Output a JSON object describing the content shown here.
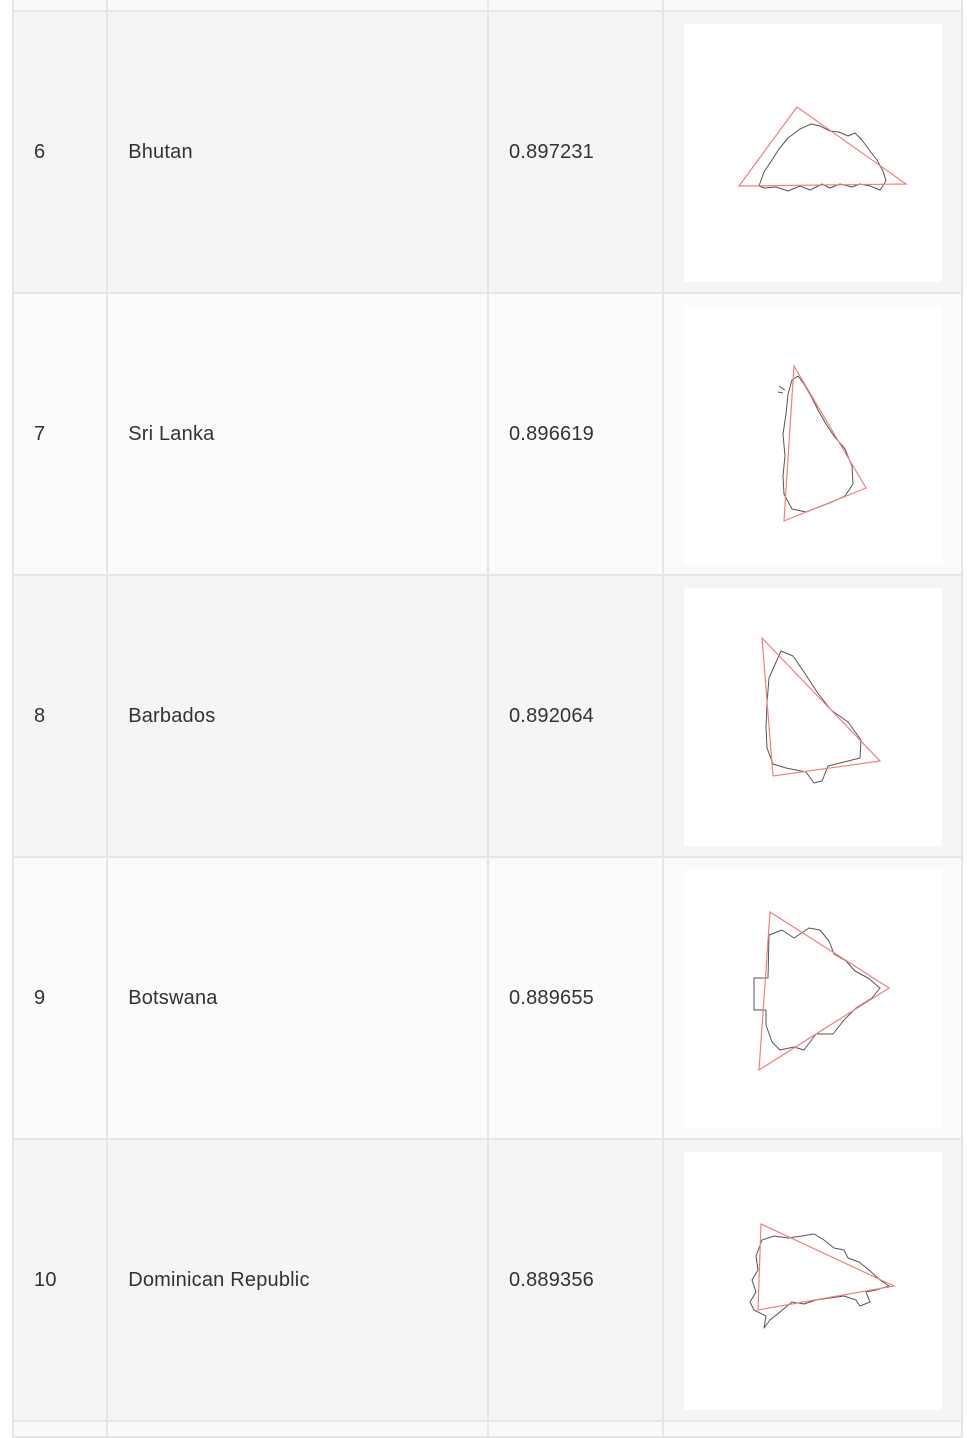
{
  "table": {
    "rows": [
      {
        "rank": "6",
        "country": "Bhutan",
        "score": "0.897231",
        "shape_icon": "bhutan-outline-with-triangle"
      },
      {
        "rank": "7",
        "country": "Sri Lanka",
        "score": "0.896619",
        "shape_icon": "sri-lanka-outline-with-triangle"
      },
      {
        "rank": "8",
        "country": "Barbados",
        "score": "0.892064",
        "shape_icon": "barbados-outline-with-triangle"
      },
      {
        "rank": "9",
        "country": "Botswana",
        "score": "0.889655",
        "shape_icon": "botswana-outline-with-triangle"
      },
      {
        "rank": "10",
        "country": "Dominican Republic",
        "score": "0.889356",
        "shape_icon": "dominican-republic-outline-with-triangle"
      }
    ]
  },
  "colors": {
    "triangle": "#f08080",
    "outline": "#555555",
    "row_alt_a": "#f5f5f5",
    "row_alt_b": "#fbfbfb",
    "border": "#e6e6e6"
  }
}
